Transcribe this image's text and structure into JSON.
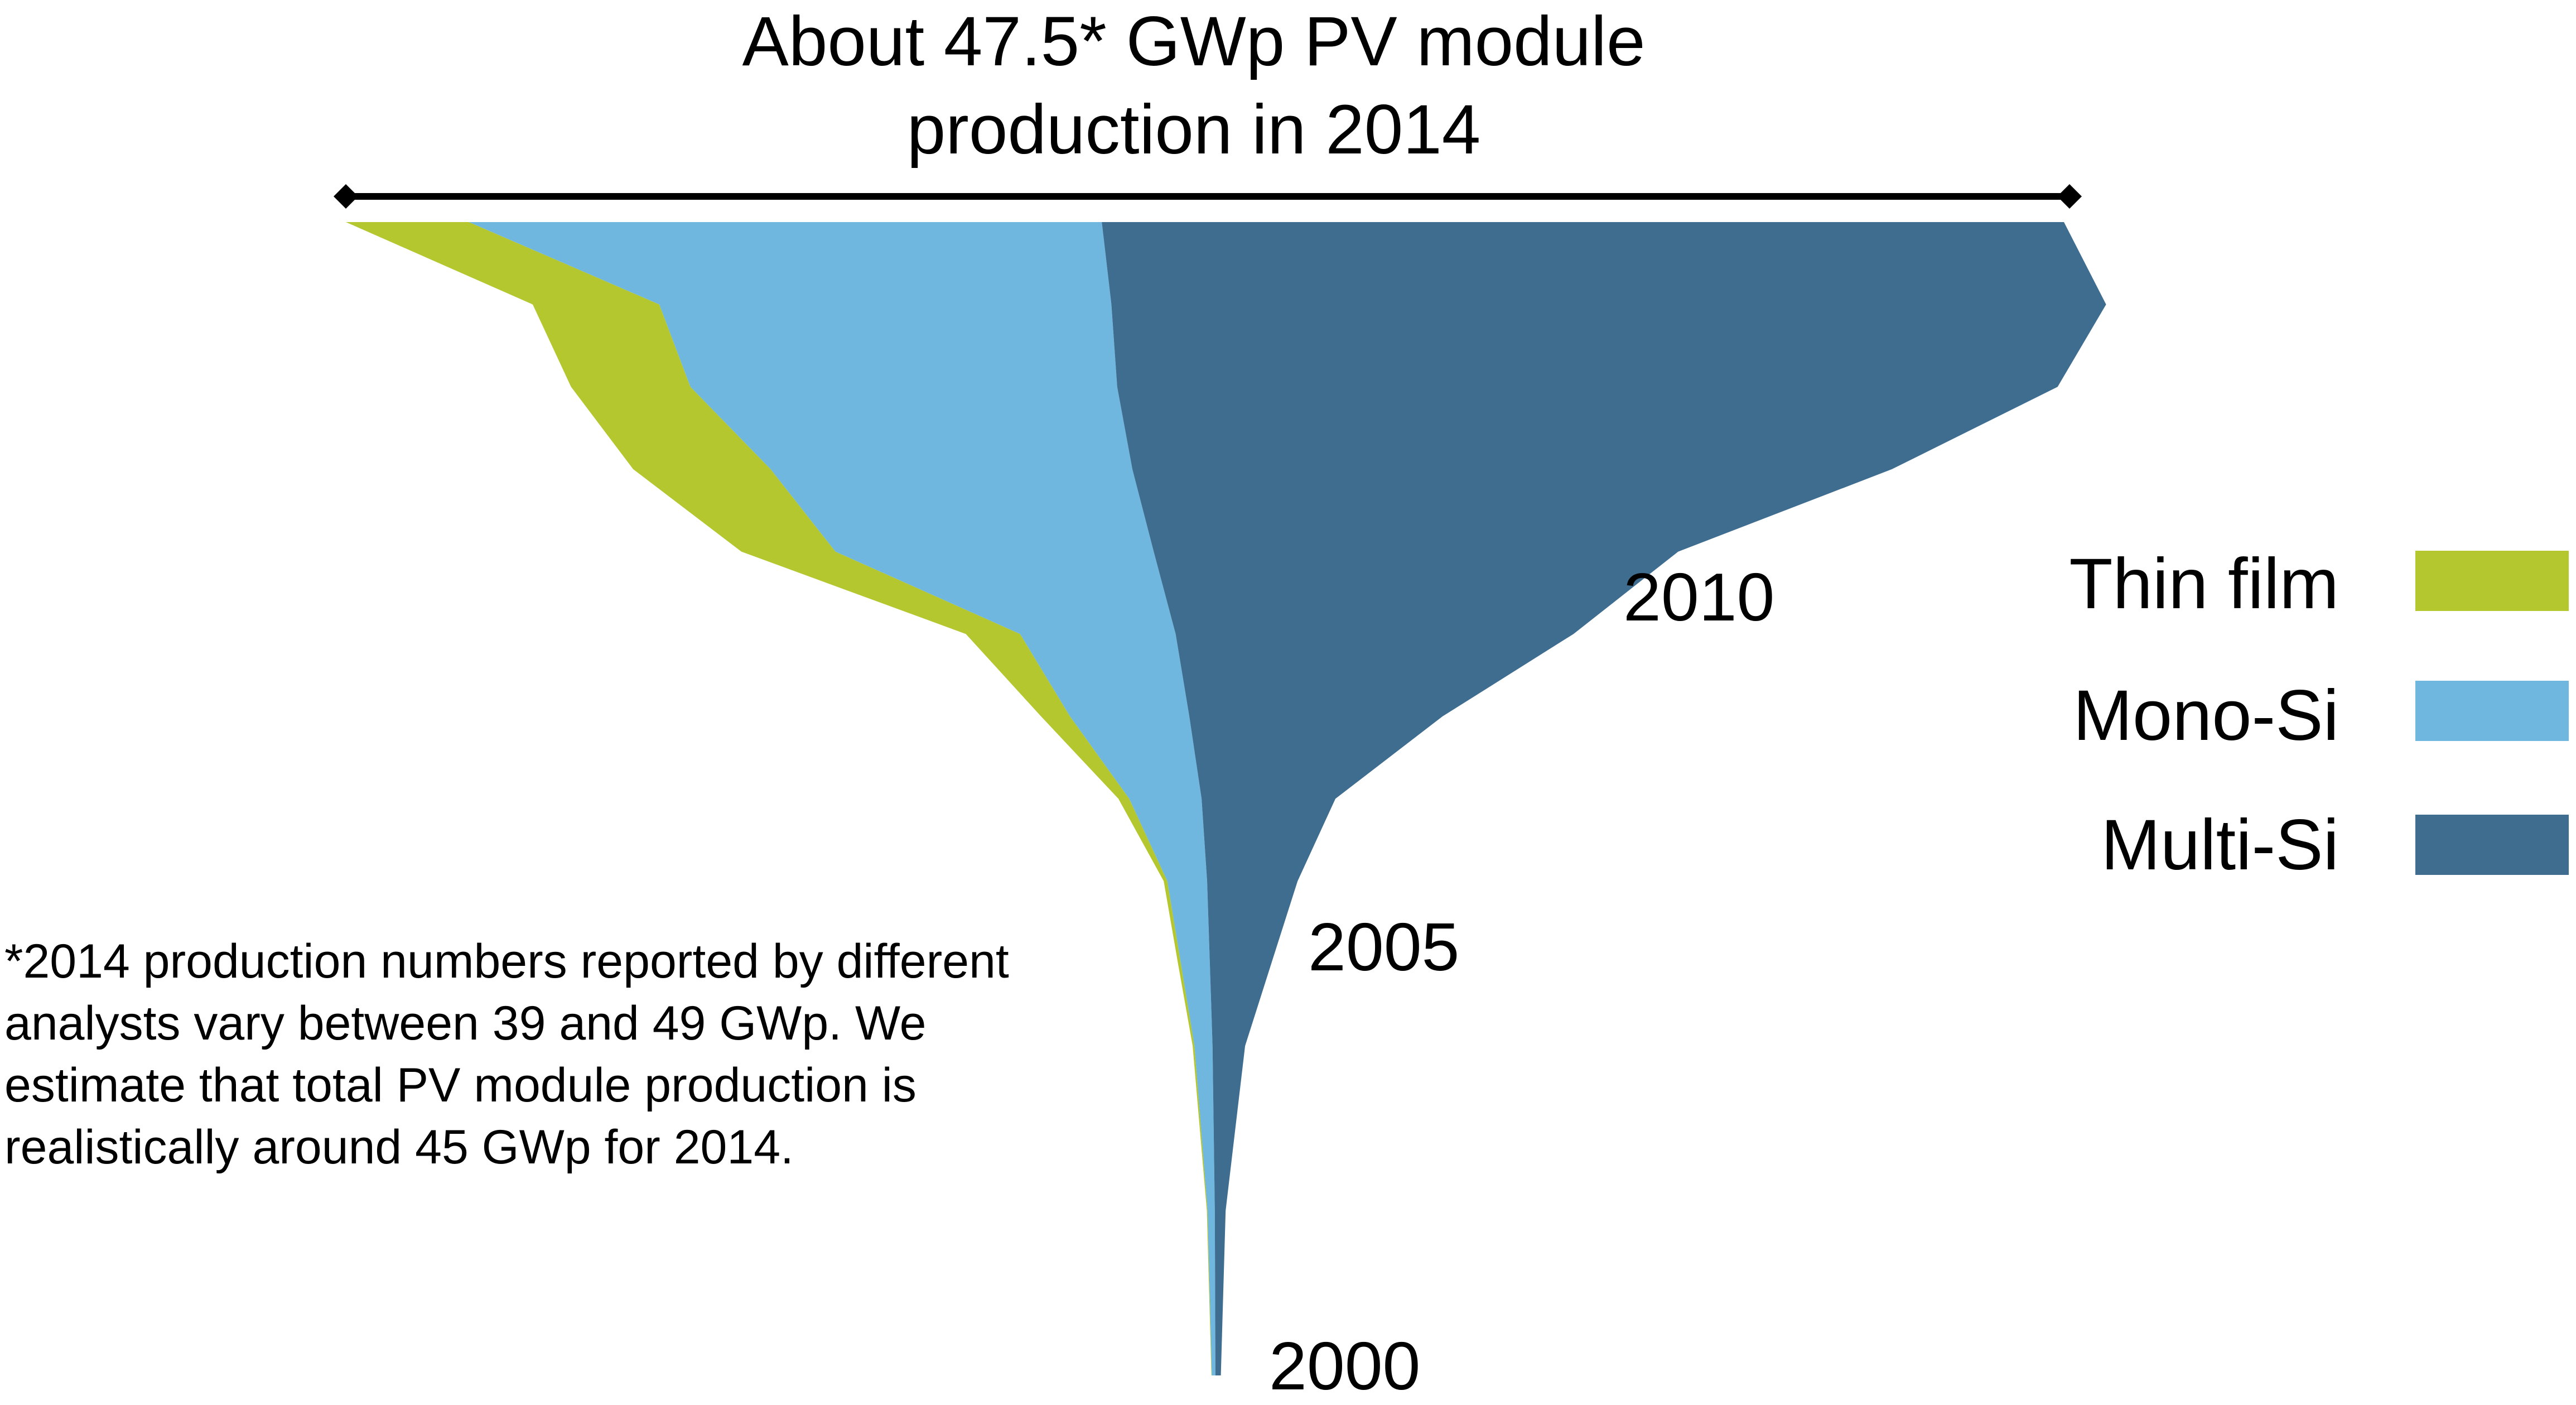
{
  "title": {
    "line1": "About 47.5* GWp PV module",
    "line2": "production in 2014"
  },
  "colors": {
    "thin_film": "#b5c72f",
    "mono_si": "#6fb7de",
    "multi_si": "#3f6d90",
    "bracket": "#000000"
  },
  "legend": [
    {
      "key": "thin_film",
      "label": "Thin film"
    },
    {
      "key": "mono_si",
      "label": "Mono-Si"
    },
    {
      "key": "multi_si",
      "label": "Multi-Si"
    }
  ],
  "year_labels": [
    "2010",
    "2005",
    "2000"
  ],
  "footnote": "*2014 production numbers reported by different analysts vary between 39 and 49 GWp. We estimate that total PV module production is realistically around 45 GWp for 2014.",
  "chart_data": {
    "type": "area",
    "subtype": "centered-stream-funnel",
    "title": "About 47.5* GWp PV module production in 2014",
    "xlabel": "",
    "ylabel": "",
    "unit": "GWp",
    "years": [
      2000,
      2002,
      2004,
      2005,
      2006,
      2007,
      2008,
      2009,
      2010,
      2011,
      2012,
      2013,
      2014
    ],
    "series": [
      {
        "name": "Thin film",
        "values": [
          0.01,
          0.02,
          0.05,
          0.08,
          0.1,
          0.3,
          0.8,
          1.5,
          2.6,
          3.8,
          3.3,
          3.5,
          3.4
        ]
      },
      {
        "name": "Mono-Si",
        "values": [
          0.1,
          0.2,
          0.5,
          0.8,
          1.1,
          2.0,
          3.3,
          4.3,
          8.8,
          10.0,
          11.8,
          12.5,
          17.5
        ]
      },
      {
        "name": "Multi-Si",
        "values": [
          0.15,
          0.3,
          0.9,
          1.7,
          2.5,
          3.7,
          7.0,
          11.0,
          14.5,
          21.0,
          26.0,
          27.5,
          26.6
        ]
      }
    ],
    "total_2014": 47.5,
    "labeled_years": [
      2000,
      2005,
      2010
    ],
    "legend_position": "right",
    "grid": false
  }
}
